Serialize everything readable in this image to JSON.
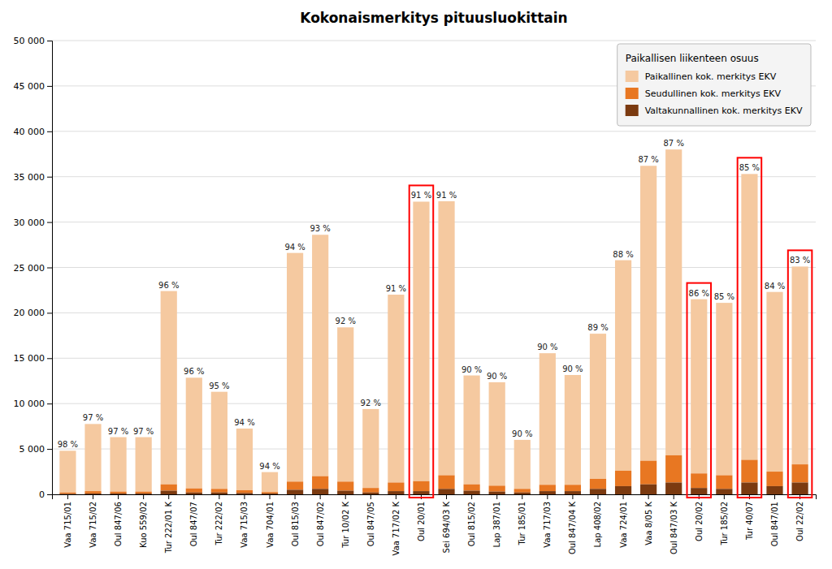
{
  "chart_data": {
    "type": "bar",
    "stacked": true,
    "title": "Kokonaismerkitys pituusluokittain",
    "categories": [
      "Vaa 715/01",
      "Vaa 715/02",
      "Oul 847/06",
      "Kuo 559/02",
      "Tur 222/01 K",
      "Oul 847/07",
      "Tur 222/02",
      "Vaa 715/03",
      "Vaa 704/01",
      "Oul 815/03",
      "Oul 847/02",
      "Tur 10/02 K",
      "Oul 847/05",
      "Vaa 717/02 K",
      "Oul 20/01",
      "Sei 694/03 K",
      "Oul 815/02",
      "Lap 387/01",
      "Tur 185/01",
      "Vaa 717/03",
      "Oul 847/04 K",
      "Lap 408/02",
      "Vaa 724/01",
      "Vaa 8/05 K",
      "Oul 847/03 K",
      "Oul 20/02",
      "Tur 185/02",
      "Tur 40/07",
      "Oul 847/01",
      "Oul 22/02"
    ],
    "series": [
      {
        "name": "Paikallinen kok. merkitys EKV",
        "color": "#F5C9A0",
        "values": [
          4600,
          7400,
          6000,
          6000,
          21300,
          12200,
          10700,
          6800,
          2200,
          25200,
          26600,
          17000,
          8700,
          20700,
          30800,
          30200,
          12000,
          11400,
          5400,
          14500,
          12100,
          16000,
          23200,
          32500,
          33700,
          19200,
          19000,
          31500,
          19800,
          21800
        ]
      },
      {
        "name": "Seudullinen kok. merkitys EKV",
        "color": "#E87722",
        "values": [
          150,
          250,
          200,
          200,
          700,
          450,
          400,
          300,
          150,
          900,
          1400,
          1000,
          500,
          950,
          1100,
          1500,
          700,
          650,
          400,
          700,
          700,
          1100,
          1700,
          2600,
          3000,
          1600,
          1500,
          2500,
          1600,
          2000
        ]
      },
      {
        "name": "Valtakunnallinen kok. merkitys EKV",
        "color": "#7B3A10",
        "values": [
          50,
          100,
          100,
          100,
          400,
          200,
          200,
          150,
          100,
          500,
          600,
          400,
          200,
          350,
          350,
          600,
          400,
          300,
          200,
          350,
          350,
          600,
          900,
          1100,
          1300,
          700,
          600,
          1300,
          900,
          1300
        ]
      }
    ],
    "annotations": [
      "98 %",
      "97 %",
      "97 %",
      "97 %",
      "96 %",
      "96 %",
      "95 %",
      "94 %",
      "94 %",
      "94 %",
      "93 %",
      "92 %",
      "92 %",
      "91 %",
      "91 %",
      "91 %",
      "90 %",
      "90 %",
      "90 %",
      "90 %",
      "90 %",
      "89 %",
      "88 %",
      "87 %",
      "87 %",
      "86 %",
      "85 %",
      "85 %",
      "84 %",
      "83 %"
    ],
    "highlight": [
      "Oul 20/01",
      "Oul 20/02",
      "Tur 40/07",
      "Oul 22/02"
    ],
    "ylim": [
      0,
      50000
    ],
    "yticks": [
      0,
      {
        "value": 5000,
        "label": "5 000"
      },
      {
        "value": 10000,
        "label": "10 000"
      },
      {
        "value": 15000,
        "label": "15 000"
      },
      {
        "value": 20000,
        "label": "20 000"
      },
      {
        "value": 25000,
        "label": "25 000"
      },
      {
        "value": 30000,
        "label": "30 000"
      },
      {
        "value": 35000,
        "label": "35 000"
      },
      {
        "value": 40000,
        "label": "40 000"
      },
      {
        "value": 45000,
        "label": "45 000"
      },
      {
        "value": 50000,
        "label": "50 000"
      }
    ],
    "grid": true,
    "legend": "upper right",
    "legend_title": "Paikallisen liikenteen osuus"
  }
}
